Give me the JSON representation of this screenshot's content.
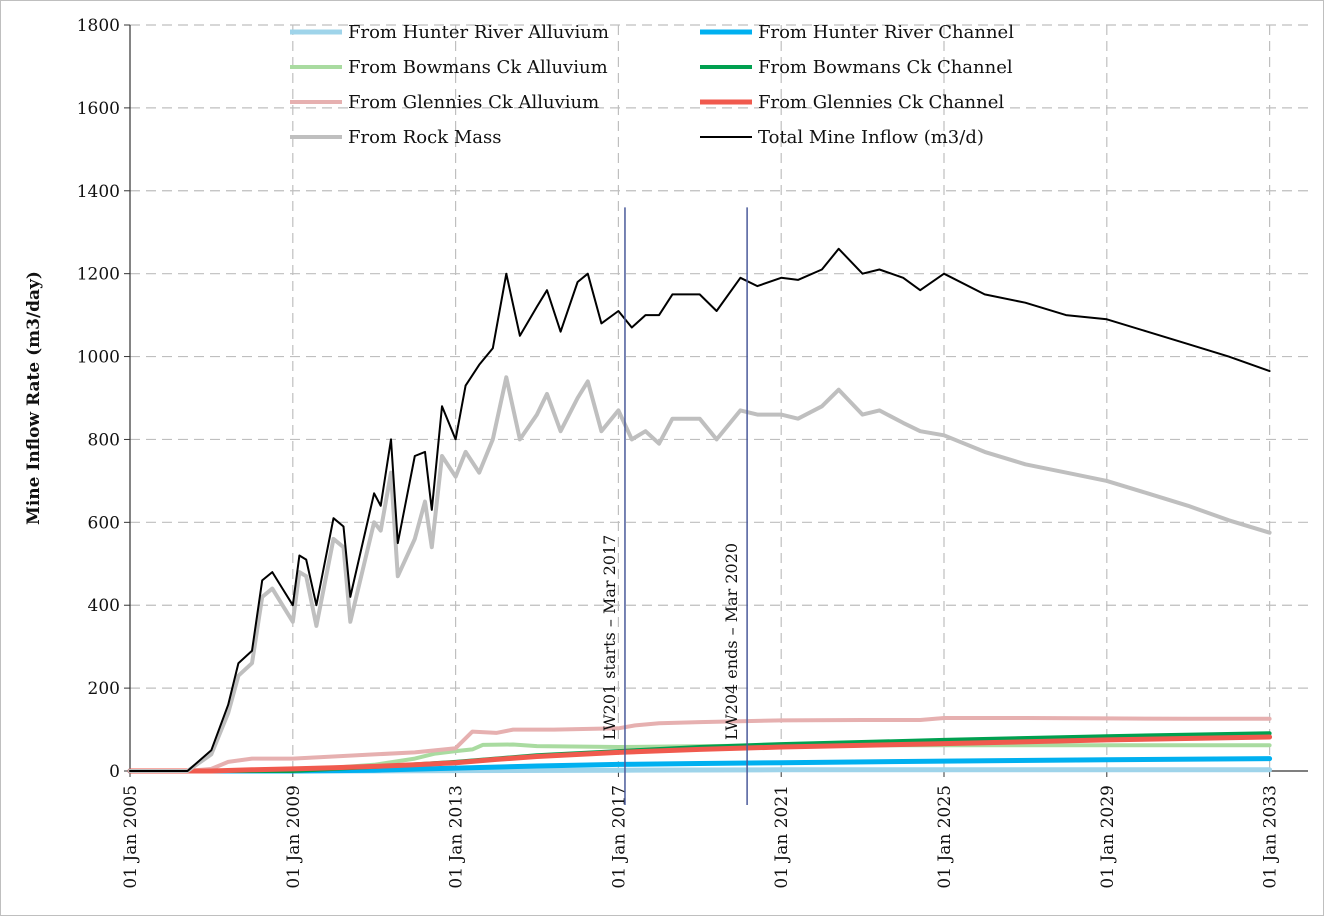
{
  "chart_data": {
    "type": "line",
    "title": "",
    "xlabel": "",
    "ylabel": "Mine Inflow Rate  (m3/day)",
    "xlim": [
      "2005-01-01",
      "2033-12-01"
    ],
    "ylim": [
      0,
      1800
    ],
    "grid": true,
    "legend_position": "top",
    "x_ticks": [
      "01 Jan 2005",
      "01 Jan 2009",
      "01 Jan 2013",
      "01 Jan 2017",
      "01 Jan 2021",
      "01 Jan 2025",
      "01 Jan 2029",
      "01 Jan 2033"
    ],
    "x_tick_dates": [
      "2005-01-01",
      "2009-01-01",
      "2013-01-01",
      "2017-01-01",
      "2021-01-01",
      "2025-01-01",
      "2029-01-01",
      "2033-01-01"
    ],
    "y_ticks": [
      "0",
      "200",
      "400",
      "600",
      "800",
      "1000",
      "1200",
      "1400",
      "1600",
      "1800"
    ],
    "annotations": [
      {
        "text": "LW201 starts – Mar 2017",
        "date": "2017-03-01",
        "line_top": 1360,
        "line_bottom": 0,
        "color": "#4a5a9a"
      },
      {
        "text": "LW204 ends – Mar 2020",
        "date": "2020-03-01",
        "line_top": 1360,
        "line_bottom": 0,
        "color": "#4a5a9a"
      }
    ],
    "series": [
      {
        "name": "From Hunter River Alluvium",
        "color": "#9fd4ea",
        "width": 5,
        "points": [
          [
            "2005-01-01",
            0
          ],
          [
            "2008-01-01",
            0
          ],
          [
            "2010-01-01",
            0
          ],
          [
            "2013-01-01",
            1
          ],
          [
            "2017-01-01",
            2
          ],
          [
            "2021-01-01",
            3
          ],
          [
            "2025-01-01",
            3
          ],
          [
            "2029-01-01",
            3
          ],
          [
            "2033-01-01",
            3
          ]
        ]
      },
      {
        "name": "From Hunter River Channel",
        "color": "#00b0f0",
        "width": 5,
        "points": [
          [
            "2005-01-01",
            0
          ],
          [
            "2009-01-01",
            0
          ],
          [
            "2011-01-01",
            2
          ],
          [
            "2013-01-01",
            7
          ],
          [
            "2015-01-01",
            12
          ],
          [
            "2017-01-01",
            16
          ],
          [
            "2019-01-01",
            18
          ],
          [
            "2021-01-01",
            20
          ],
          [
            "2025-01-01",
            24
          ],
          [
            "2029-01-01",
            27
          ],
          [
            "2033-01-01",
            30
          ]
        ]
      },
      {
        "name": "From Bowmans Ck Alluvium",
        "color": "#a9dba0",
        "width": 4,
        "points": [
          [
            "2005-01-01",
            0
          ],
          [
            "2009-01-01",
            0
          ],
          [
            "2010-01-01",
            8
          ],
          [
            "2011-01-01",
            15
          ],
          [
            "2012-01-01",
            30
          ],
          [
            "2012-07-01",
            42
          ],
          [
            "2013-01-01",
            48
          ],
          [
            "2013-06-01",
            52
          ],
          [
            "2013-09-01",
            63
          ],
          [
            "2014-06-01",
            64
          ],
          [
            "2015-01-01",
            60
          ],
          [
            "2017-01-01",
            58
          ],
          [
            "2021-01-01",
            62
          ],
          [
            "2025-01-01",
            62
          ],
          [
            "2029-01-01",
            62
          ],
          [
            "2033-01-01",
            62
          ]
        ]
      },
      {
        "name": "From Bowmans Ck Channel",
        "color": "#00a050",
        "width": 4,
        "points": [
          [
            "2005-01-01",
            0
          ],
          [
            "2009-01-01",
            0
          ],
          [
            "2011-01-01",
            10
          ],
          [
            "2013-01-01",
            22
          ],
          [
            "2015-01-01",
            38
          ],
          [
            "2017-01-01",
            48
          ],
          [
            "2019-01-01",
            58
          ],
          [
            "2021-01-01",
            65
          ],
          [
            "2025-01-01",
            75
          ],
          [
            "2029-01-01",
            84
          ],
          [
            "2033-01-01",
            91
          ]
        ]
      },
      {
        "name": "From Glennies Ck Alluvium",
        "color": "#e6b0b0",
        "width": 4,
        "points": [
          [
            "2005-01-01",
            0
          ],
          [
            "2006-06-01",
            0
          ],
          [
            "2007-01-01",
            5
          ],
          [
            "2007-06-01",
            22
          ],
          [
            "2008-01-01",
            30
          ],
          [
            "2009-01-01",
            30
          ],
          [
            "2010-01-01",
            35
          ],
          [
            "2011-01-01",
            40
          ],
          [
            "2012-01-01",
            45
          ],
          [
            "2013-01-01",
            55
          ],
          [
            "2013-06-01",
            95
          ],
          [
            "2014-01-01",
            92
          ],
          [
            "2014-06-01",
            100
          ],
          [
            "2015-06-01",
            100
          ],
          [
            "2017-01-01",
            103
          ],
          [
            "2017-06-01",
            110
          ],
          [
            "2018-01-01",
            115
          ],
          [
            "2019-01-01",
            118
          ],
          [
            "2021-01-01",
            122
          ],
          [
            "2023-01-01",
            123
          ],
          [
            "2024-06-01",
            123
          ],
          [
            "2025-01-01",
            128
          ],
          [
            "2027-01-01",
            128
          ],
          [
            "2029-01-01",
            127
          ],
          [
            "2031-01-01",
            126
          ],
          [
            "2033-01-01",
            126
          ]
        ]
      },
      {
        "name": "From Glennies Ck Channel",
        "color": "#f05a4e",
        "width": 5,
        "points": [
          [
            "2005-01-01",
            0
          ],
          [
            "2007-01-01",
            0
          ],
          [
            "2008-01-01",
            3
          ],
          [
            "2009-01-01",
            5
          ],
          [
            "2010-01-01",
            8
          ],
          [
            "2011-01-01",
            11
          ],
          [
            "2012-01-01",
            15
          ],
          [
            "2013-01-01",
            20
          ],
          [
            "2014-01-01",
            28
          ],
          [
            "2015-01-01",
            35
          ],
          [
            "2017-01-01",
            45
          ],
          [
            "2019-01-01",
            52
          ],
          [
            "2021-01-01",
            58
          ],
          [
            "2025-01-01",
            66
          ],
          [
            "2029-01-01",
            75
          ],
          [
            "2033-01-01",
            82
          ]
        ]
      },
      {
        "name": "From Rock Mass",
        "color": "#bfbfbf",
        "width": 4,
        "points": [
          [
            "2005-01-01",
            0
          ],
          [
            "2006-06-01",
            0
          ],
          [
            "2007-01-01",
            40
          ],
          [
            "2007-06-01",
            140
          ],
          [
            "2007-09-01",
            230
          ],
          [
            "2008-01-01",
            260
          ],
          [
            "2008-04-01",
            420
          ],
          [
            "2008-07-01",
            440
          ],
          [
            "2008-10-01",
            400
          ],
          [
            "2009-01-01",
            360
          ],
          [
            "2009-03-01",
            480
          ],
          [
            "2009-05-01",
            470
          ],
          [
            "2009-08-01",
            350
          ],
          [
            "2010-01-01",
            560
          ],
          [
            "2010-04-01",
            540
          ],
          [
            "2010-06-01",
            360
          ],
          [
            "2011-01-01",
            600
          ],
          [
            "2011-03-01",
            580
          ],
          [
            "2011-06-01",
            720
          ],
          [
            "2011-08-01",
            470
          ],
          [
            "2012-01-01",
            560
          ],
          [
            "2012-04-01",
            650
          ],
          [
            "2012-06-01",
            540
          ],
          [
            "2012-09-01",
            760
          ],
          [
            "2013-01-01",
            710
          ],
          [
            "2013-04-01",
            770
          ],
          [
            "2013-08-01",
            720
          ],
          [
            "2013-12-01",
            800
          ],
          [
            "2014-04-01",
            950
          ],
          [
            "2014-08-01",
            800
          ],
          [
            "2015-01-01",
            860
          ],
          [
            "2015-04-01",
            910
          ],
          [
            "2015-08-01",
            820
          ],
          [
            "2016-01-01",
            900
          ],
          [
            "2016-04-01",
            940
          ],
          [
            "2016-08-01",
            820
          ],
          [
            "2017-01-01",
            870
          ],
          [
            "2017-05-01",
            800
          ],
          [
            "2017-09-01",
            820
          ],
          [
            "2018-01-01",
            790
          ],
          [
            "2018-05-01",
            850
          ],
          [
            "2019-01-01",
            850
          ],
          [
            "2019-06-01",
            800
          ],
          [
            "2020-01-01",
            870
          ],
          [
            "2020-06-01",
            860
          ],
          [
            "2021-01-01",
            860
          ],
          [
            "2021-06-01",
            850
          ],
          [
            "2022-01-01",
            880
          ],
          [
            "2022-06-01",
            920
          ],
          [
            "2023-01-01",
            860
          ],
          [
            "2023-06-01",
            870
          ],
          [
            "2024-01-01",
            840
          ],
          [
            "2024-06-01",
            820
          ],
          [
            "2025-01-01",
            810
          ],
          [
            "2026-01-01",
            770
          ],
          [
            "2027-01-01",
            740
          ],
          [
            "2028-01-01",
            720
          ],
          [
            "2029-01-01",
            700
          ],
          [
            "2030-01-01",
            670
          ],
          [
            "2031-01-01",
            640
          ],
          [
            "2032-01-01",
            605
          ],
          [
            "2033-01-01",
            575
          ]
        ]
      },
      {
        "name": "Total Mine Inflow (m3/d)",
        "color": "#000000",
        "width": 2,
        "points": [
          [
            "2005-01-01",
            0
          ],
          [
            "2006-06-01",
            0
          ],
          [
            "2007-01-01",
            50
          ],
          [
            "2007-06-01",
            160
          ],
          [
            "2007-09-01",
            260
          ],
          [
            "2008-01-01",
            290
          ],
          [
            "2008-04-01",
            460
          ],
          [
            "2008-07-01",
            480
          ],
          [
            "2008-10-01",
            440
          ],
          [
            "2009-01-01",
            400
          ],
          [
            "2009-03-01",
            520
          ],
          [
            "2009-05-01",
            510
          ],
          [
            "2009-08-01",
            400
          ],
          [
            "2010-01-01",
            610
          ],
          [
            "2010-04-01",
            590
          ],
          [
            "2010-06-01",
            420
          ],
          [
            "2011-01-01",
            670
          ],
          [
            "2011-03-01",
            640
          ],
          [
            "2011-06-01",
            800
          ],
          [
            "2011-08-01",
            550
          ],
          [
            "2012-01-01",
            760
          ],
          [
            "2012-04-01",
            770
          ],
          [
            "2012-06-01",
            630
          ],
          [
            "2012-09-01",
            880
          ],
          [
            "2013-01-01",
            800
          ],
          [
            "2013-04-01",
            930
          ],
          [
            "2013-08-01",
            980
          ],
          [
            "2013-12-01",
            1020
          ],
          [
            "2014-04-01",
            1200
          ],
          [
            "2014-08-01",
            1050
          ],
          [
            "2015-01-01",
            1120
          ],
          [
            "2015-04-01",
            1160
          ],
          [
            "2015-08-01",
            1060
          ],
          [
            "2016-01-01",
            1180
          ],
          [
            "2016-04-01",
            1200
          ],
          [
            "2016-08-01",
            1080
          ],
          [
            "2017-01-01",
            1110
          ],
          [
            "2017-05-01",
            1070
          ],
          [
            "2017-09-01",
            1100
          ],
          [
            "2018-01-01",
            1100
          ],
          [
            "2018-05-01",
            1150
          ],
          [
            "2019-01-01",
            1150
          ],
          [
            "2019-06-01",
            1110
          ],
          [
            "2020-01-01",
            1190
          ],
          [
            "2020-06-01",
            1170
          ],
          [
            "2021-01-01",
            1190
          ],
          [
            "2021-06-01",
            1185
          ],
          [
            "2022-01-01",
            1210
          ],
          [
            "2022-06-01",
            1260
          ],
          [
            "2023-01-01",
            1200
          ],
          [
            "2023-06-01",
            1210
          ],
          [
            "2024-01-01",
            1190
          ],
          [
            "2024-06-01",
            1160
          ],
          [
            "2025-01-01",
            1200
          ],
          [
            "2026-01-01",
            1150
          ],
          [
            "2027-01-01",
            1130
          ],
          [
            "2028-01-01",
            1100
          ],
          [
            "2029-01-01",
            1090
          ],
          [
            "2030-01-01",
            1060
          ],
          [
            "2031-01-01",
            1030
          ],
          [
            "2032-01-01",
            1000
          ],
          [
            "2033-01-01",
            965
          ]
        ]
      }
    ]
  }
}
